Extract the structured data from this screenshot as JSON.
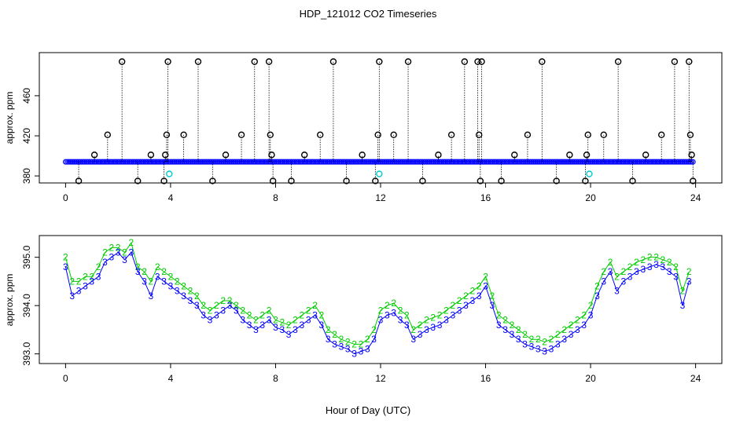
{
  "title": "HDP_121012  CO2 Timeseries",
  "xlabel": "Hour of Day (UTC)",
  "colors": {
    "black": "#000000",
    "blue": "#0000ff",
    "green": "#00cc00",
    "cyan": "#00cccc",
    "axis": "#000000"
  },
  "chart_data": [
    {
      "type": "scatter",
      "name": "top-panel",
      "ylabel": "approx. ppm",
      "xlim": [
        -1,
        25
      ],
      "ylim": [
        373,
        503
      ],
      "xticks": [
        0,
        4,
        8,
        12,
        16,
        20,
        24
      ],
      "xtick_labels": [
        "0",
        "4",
        "8",
        "12",
        "16",
        "20",
        "24"
      ],
      "yticks": [
        380,
        420,
        460
      ],
      "ytick_labels": [
        "380",
        "420",
        "460"
      ],
      "baseline": {
        "color": "blue",
        "x_start": 0.0,
        "x_end": 23.9,
        "y": 394
      },
      "cyan_points": {
        "x": [
          3.95,
          11.95,
          19.95
        ],
        "y": [
          382,
          382,
          382
        ]
      },
      "spikes": {
        "x": [
          0.5,
          1.1,
          1.6,
          2.15,
          2.75,
          3.25,
          3.75,
          3.8,
          3.85,
          3.9,
          4.5,
          5.05,
          5.6,
          6.1,
          6.7,
          7.2,
          7.75,
          7.8,
          7.85,
          7.9,
          8.6,
          9.1,
          9.7,
          10.2,
          10.7,
          11.3,
          11.8,
          11.9,
          11.95,
          12.5,
          13.05,
          13.6,
          14.2,
          14.7,
          15.2,
          15.7,
          15.75,
          15.8,
          15.85,
          16.6,
          17.1,
          17.6,
          18.15,
          18.7,
          19.2,
          19.8,
          19.85,
          19.9,
          20.5,
          21.05,
          21.6,
          22.1,
          22.7,
          23.2,
          23.75,
          23.8,
          23.85,
          23.9
        ],
        "y": [
          375,
          401,
          421,
          494,
          375,
          401,
          375,
          401,
          421,
          494,
          421,
          494,
          375,
          401,
          421,
          494,
          494,
          421,
          401,
          375,
          375,
          401,
          421,
          494,
          375,
          401,
          375,
          421,
          494,
          421,
          494,
          375,
          401,
          421,
          494,
          494,
          421,
          375,
          494,
          375,
          401,
          421,
          494,
          375,
          401,
          375,
          401,
          421,
          421,
          494,
          375,
          401,
          421,
          494,
          494,
          421,
          401,
          375
        ]
      }
    },
    {
      "type": "line",
      "name": "bottom-panel",
      "ylabel": "approx. ppm",
      "xlim": [
        -1,
        25
      ],
      "ylim": [
        392.8,
        395.45
      ],
      "xticks": [
        0,
        4,
        8,
        12,
        16,
        20,
        24
      ],
      "xtick_labels": [
        "0",
        "4",
        "8",
        "12",
        "16",
        "20",
        "24"
      ],
      "yticks": [
        393.0,
        394.0,
        395.0
      ],
      "ytick_labels": [
        "393.0",
        "394.0",
        "395.0"
      ],
      "series": [
        {
          "name": "3",
          "symbol": "3",
          "color": "blue",
          "x": [
            0,
            0.25,
            0.5,
            0.75,
            1.0,
            1.25,
            1.5,
            1.75,
            2.0,
            2.25,
            2.5,
            2.75,
            3.0,
            3.25,
            3.5,
            3.75,
            4.0,
            4.25,
            4.5,
            4.75,
            5.0,
            5.25,
            5.5,
            5.75,
            6.0,
            6.25,
            6.5,
            6.75,
            7.0,
            7.25,
            7.5,
            7.75,
            8.0,
            8.25,
            8.5,
            8.75,
            9.0,
            9.25,
            9.5,
            9.75,
            10.0,
            10.25,
            10.5,
            10.75,
            11.0,
            11.25,
            11.5,
            11.75,
            12.0,
            12.25,
            12.5,
            12.75,
            13.0,
            13.25,
            13.5,
            13.75,
            14.0,
            14.25,
            14.5,
            14.75,
            15.0,
            15.25,
            15.5,
            15.75,
            16.0,
            16.25,
            16.5,
            16.75,
            17.0,
            17.25,
            17.5,
            17.75,
            18.0,
            18.25,
            18.5,
            18.75,
            19.0,
            19.25,
            19.5,
            19.75,
            20.0,
            20.25,
            20.5,
            20.75,
            21.0,
            21.25,
            21.5,
            21.75,
            22.0,
            22.25,
            22.5,
            22.75,
            23.0,
            23.25,
            23.5,
            23.75
          ],
          "y": [
            394.8,
            394.2,
            394.3,
            394.4,
            394.5,
            394.6,
            394.9,
            395.0,
            395.1,
            394.95,
            395.1,
            394.7,
            394.5,
            394.2,
            394.6,
            394.5,
            394.4,
            394.3,
            394.2,
            394.1,
            394.0,
            393.8,
            393.7,
            393.8,
            393.9,
            394.0,
            393.9,
            393.7,
            393.6,
            393.5,
            393.6,
            393.7,
            393.55,
            393.5,
            393.4,
            393.5,
            393.6,
            393.7,
            393.8,
            393.6,
            393.3,
            393.2,
            393.15,
            393.1,
            393.0,
            393.05,
            393.1,
            393.3,
            393.7,
            393.8,
            393.85,
            393.7,
            393.6,
            393.3,
            393.4,
            393.5,
            393.55,
            393.6,
            393.7,
            393.8,
            393.9,
            394.0,
            394.1,
            394.2,
            394.4,
            394.0,
            393.6,
            393.5,
            393.4,
            393.3,
            393.2,
            393.15,
            393.1,
            393.05,
            393.1,
            393.2,
            393.3,
            393.4,
            393.5,
            393.6,
            393.8,
            394.2,
            394.5,
            394.7,
            394.3,
            394.5,
            394.6,
            394.7,
            394.75,
            394.8,
            394.85,
            394.8,
            394.7,
            394.6,
            394.0,
            394.5
          ]
        },
        {
          "name": "2",
          "symbol": "2",
          "color": "green",
          "x": [
            0,
            0.25,
            0.5,
            0.75,
            1.0,
            1.25,
            1.5,
            1.75,
            2.0,
            2.25,
            2.5,
            2.75,
            3.0,
            3.25,
            3.5,
            3.75,
            4.0,
            4.25,
            4.5,
            4.75,
            5.0,
            5.25,
            5.5,
            5.75,
            6.0,
            6.25,
            6.5,
            6.75,
            7.0,
            7.25,
            7.5,
            7.75,
            8.0,
            8.25,
            8.5,
            8.75,
            9.0,
            9.25,
            9.5,
            9.75,
            10.0,
            10.25,
            10.5,
            10.75,
            11.0,
            11.25,
            11.5,
            11.75,
            12.0,
            12.25,
            12.5,
            12.75,
            13.0,
            13.25,
            13.5,
            13.75,
            14.0,
            14.25,
            14.5,
            14.75,
            15.0,
            15.25,
            15.5,
            15.75,
            16.0,
            16.25,
            16.5,
            16.75,
            17.0,
            17.25,
            17.5,
            17.75,
            18.0,
            18.25,
            18.5,
            18.75,
            19.0,
            19.25,
            19.5,
            19.75,
            20.0,
            20.25,
            20.5,
            20.75,
            21.0,
            21.25,
            21.5,
            21.75,
            22.0,
            22.25,
            22.5,
            22.75,
            23.0,
            23.25,
            23.5,
            23.75
          ],
          "y": [
            395.0,
            394.5,
            394.5,
            394.6,
            394.6,
            394.8,
            395.1,
            395.2,
            395.2,
            395.1,
            395.3,
            394.8,
            394.7,
            394.5,
            394.8,
            394.7,
            394.6,
            394.5,
            394.4,
            394.3,
            394.2,
            394.0,
            393.9,
            394.0,
            394.1,
            394.1,
            394.0,
            393.9,
            393.8,
            393.7,
            393.8,
            393.9,
            393.7,
            393.65,
            393.6,
            393.7,
            393.8,
            393.9,
            394.0,
            393.8,
            393.5,
            393.4,
            393.3,
            393.25,
            393.2,
            393.2,
            393.3,
            393.5,
            393.9,
            394.0,
            394.05,
            393.9,
            393.8,
            393.5,
            393.6,
            393.7,
            393.75,
            393.8,
            393.9,
            394.0,
            394.1,
            394.2,
            394.3,
            394.4,
            394.6,
            394.2,
            393.8,
            393.7,
            393.6,
            393.5,
            393.4,
            393.3,
            393.3,
            393.25,
            393.3,
            393.4,
            393.5,
            393.6,
            393.7,
            393.8,
            394.0,
            394.4,
            394.7,
            394.9,
            394.6,
            394.7,
            394.8,
            394.9,
            394.95,
            395.0,
            395.0,
            394.95,
            394.9,
            394.8,
            394.3,
            394.7
          ]
        }
      ]
    }
  ]
}
